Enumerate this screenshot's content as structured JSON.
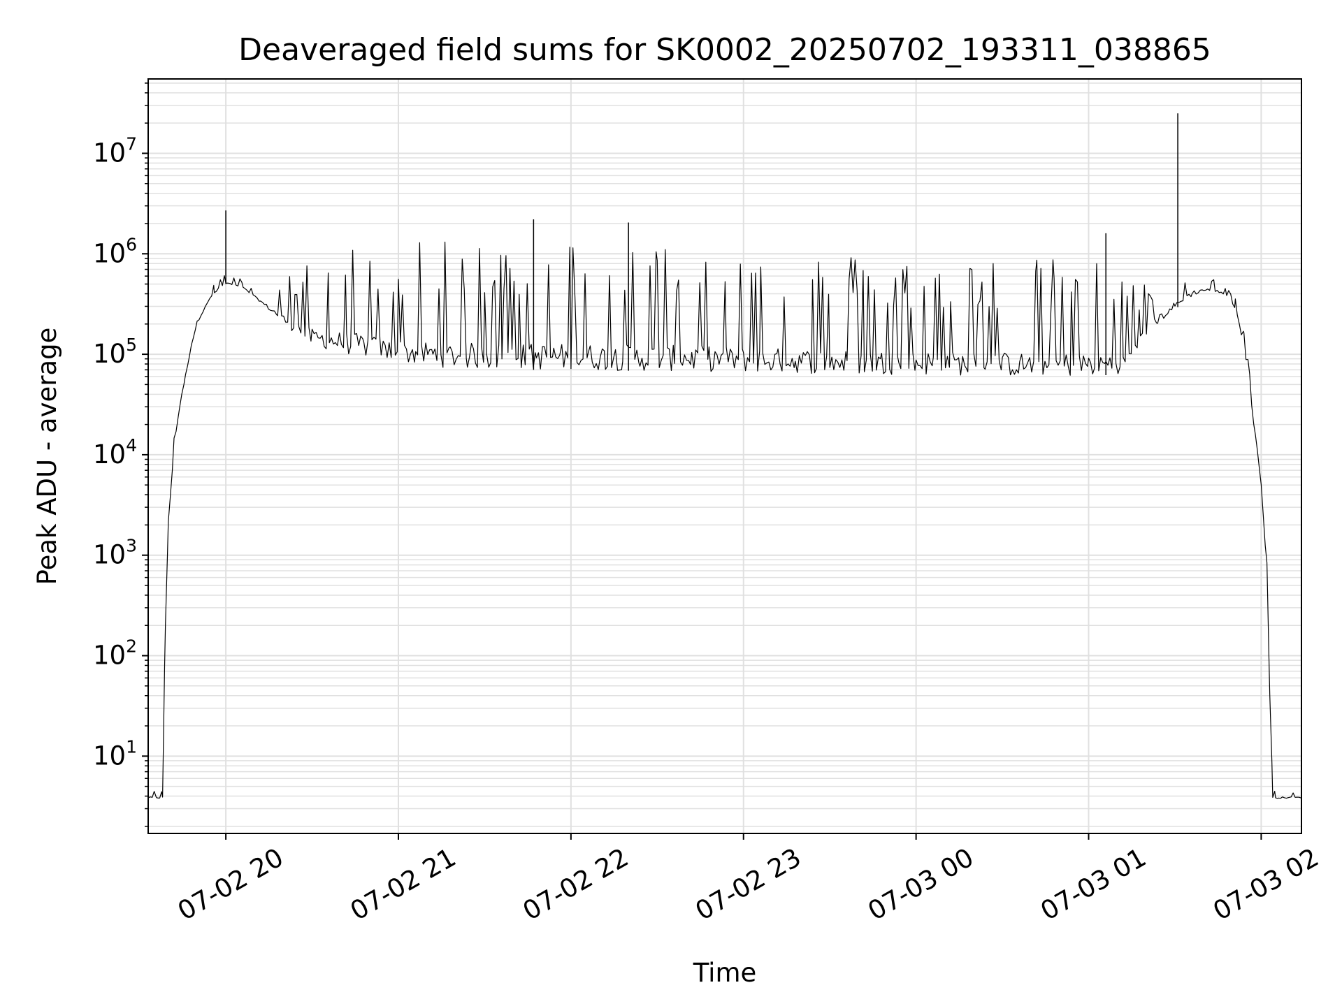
{
  "chart_data": {
    "type": "line",
    "title": "Deaveraged field sums for SK0002_20250702_193311_038865",
    "xlabel": "Time",
    "ylabel": "Peak ADU - average",
    "yscale": "log",
    "grid": true,
    "legend": "none",
    "line_color": "#000000",
    "grid_color": "#e0e0e0",
    "xlim": [
      "2025-07-02 19:33",
      "2025-07-03 02:14"
    ],
    "ylim": [
      1.7,
      55000000
    ],
    "x_ticks": [
      {
        "t": "2025-07-02 20:00",
        "label": "07-02 20"
      },
      {
        "t": "2025-07-02 21:00",
        "label": "07-02 21"
      },
      {
        "t": "2025-07-02 22:00",
        "label": "07-02 22"
      },
      {
        "t": "2025-07-02 23:00",
        "label": "07-02 23"
      },
      {
        "t": "2025-07-03 00:00",
        "label": "07-03 00"
      },
      {
        "t": "2025-07-03 01:00",
        "label": "07-03 01"
      },
      {
        "t": "2025-07-03 02:00",
        "label": "07-03 02"
      }
    ],
    "y_ticks": [
      {
        "value": 10,
        "base": "10",
        "exp": "1"
      },
      {
        "value": 100,
        "base": "10",
        "exp": "2"
      },
      {
        "value": 1000,
        "base": "10",
        "exp": "3"
      },
      {
        "value": 10000,
        "base": "10",
        "exp": "4"
      },
      {
        "value": 100000,
        "base": "10",
        "exp": "5"
      },
      {
        "value": 1000000,
        "base": "10",
        "exp": "6"
      },
      {
        "value": 10000000,
        "base": "10",
        "exp": "7"
      }
    ],
    "series": [
      {
        "x": [
          "2025-07-02 19:33",
          "2025-07-02 19:36",
          "2025-07-02 19:37",
          "2025-07-02 19:38",
          "2025-07-02 19:39",
          "2025-07-02 19:40",
          "2025-07-02 19:42",
          "2025-07-02 19:44",
          "2025-07-02 19:46",
          "2025-07-02 19:48",
          "2025-07-02 19:50",
          "2025-07-02 19:53",
          "2025-07-02 19:56",
          "2025-07-02 20:00",
          "2025-07-02 20:06",
          "2025-07-02 20:12",
          "2025-07-02 20:18",
          "2025-07-02 20:24",
          "2025-07-02 20:30",
          "2025-07-02 20:36",
          "2025-07-02 20:42",
          "2025-07-02 20:48",
          "2025-07-02 20:54",
          "2025-07-02 21:00",
          "2025-07-02 21:06",
          "2025-07-02 21:12",
          "2025-07-02 21:18",
          "2025-07-02 21:24",
          "2025-07-02 21:30",
          "2025-07-02 21:36",
          "2025-07-02 21:42",
          "2025-07-02 21:48",
          "2025-07-02 21:54",
          "2025-07-02 22:00",
          "2025-07-02 22:06",
          "2025-07-02 22:12",
          "2025-07-02 22:18",
          "2025-07-02 22:24",
          "2025-07-02 22:30",
          "2025-07-02 22:36",
          "2025-07-02 22:42",
          "2025-07-02 22:48",
          "2025-07-02 22:54",
          "2025-07-02 23:00",
          "2025-07-02 23:06",
          "2025-07-02 23:12",
          "2025-07-02 23:18",
          "2025-07-02 23:24",
          "2025-07-02 23:30",
          "2025-07-02 23:36",
          "2025-07-02 23:42",
          "2025-07-02 23:48",
          "2025-07-02 23:54",
          "2025-07-03 00:00",
          "2025-07-03 00:06",
          "2025-07-03 00:12",
          "2025-07-03 00:18",
          "2025-07-03 00:24",
          "2025-07-03 00:30",
          "2025-07-03 00:36",
          "2025-07-03 00:42",
          "2025-07-03 00:48",
          "2025-07-03 00:54",
          "2025-07-03 01:00",
          "2025-07-03 01:06",
          "2025-07-03 01:12",
          "2025-07-03 01:18",
          "2025-07-03 01:24",
          "2025-07-03 01:30",
          "2025-07-03 01:36",
          "2025-07-03 01:40",
          "2025-07-03 01:44",
          "2025-07-03 01:48",
          "2025-07-03 01:51",
          "2025-07-03 01:54",
          "2025-07-03 01:56",
          "2025-07-03 01:58",
          "2025-07-03 02:00",
          "2025-07-03 02:02",
          "2025-07-03 02:03",
          "2025-07-03 02:04",
          "2025-07-03 02:05",
          "2025-07-03 02:06",
          "2025-07-03 02:09",
          "2025-07-03 02:14"
        ],
        "low": [
          3.8,
          3.8,
          3.8,
          3.8,
          200,
          2000,
          12000,
          30000,
          60000,
          120000,
          200000,
          300000,
          400000,
          500000,
          450000,
          330000,
          230000,
          160000,
          120000,
          110000,
          100000,
          95000,
          85000,
          80000,
          78000,
          75000,
          73000,
          72000,
          71000,
          70000,
          70000,
          70000,
          70000,
          69000,
          69000,
          69000,
          69000,
          68000,
          68000,
          68000,
          68000,
          67000,
          67000,
          66000,
          66000,
          65000,
          65000,
          64000,
          64000,
          63000,
          63000,
          63000,
          63000,
          62000,
          62000,
          62000,
          61000,
          61000,
          61000,
          60000,
          60000,
          60000,
          60000,
          61000,
          62000,
          65000,
          120000,
          200000,
          280000,
          380000,
          420000,
          420000,
          380000,
          280000,
          120000,
          40000,
          15000,
          5000,
          600,
          40,
          3.8,
          3.8,
          3.8,
          3.8,
          3.8
        ],
        "high": [
          4.5,
          4.5,
          4.5,
          4.5,
          300,
          3000,
          16000,
          40000,
          80000,
          160000,
          280000,
          400000,
          520000,
          650000,
          550000,
          420000,
          500000,
          700000,
          900000,
          1100000,
          1200000,
          1250000,
          1300000,
          1300000,
          1300000,
          1320000,
          1350000,
          1380000,
          1400000,
          1450000,
          1450000,
          1450000,
          1450000,
          1450000,
          1450000,
          1420000,
          1400000,
          1380000,
          1350000,
          1300000,
          1300000,
          1280000,
          1250000,
          1200000,
          1180000,
          1150000,
          1100000,
          1080000,
          1050000,
          1020000,
          1000000,
          980000,
          970000,
          950000,
          950000,
          950000,
          940000,
          930000,
          920000,
          910000,
          900000,
          900000,
          900000,
          900000,
          800000,
          600000,
          500000,
          550000,
          650000,
          700000,
          650000,
          550000,
          480000,
          380000,
          200000,
          70000,
          25000,
          8000,
          1000,
          60,
          4.5,
          4.5,
          4.5,
          4.5,
          4.5
        ]
      }
    ],
    "spikes": [
      {
        "t": "2025-07-02 20:00",
        "value": 2700000
      },
      {
        "t": "2025-07-02 21:47",
        "value": 2200000
      },
      {
        "t": "2025-07-02 22:20",
        "value": 2050000
      },
      {
        "t": "2025-07-03 01:06",
        "value": 1600000
      },
      {
        "t": "2025-07-03 01:31",
        "value": 25000000
      }
    ]
  }
}
